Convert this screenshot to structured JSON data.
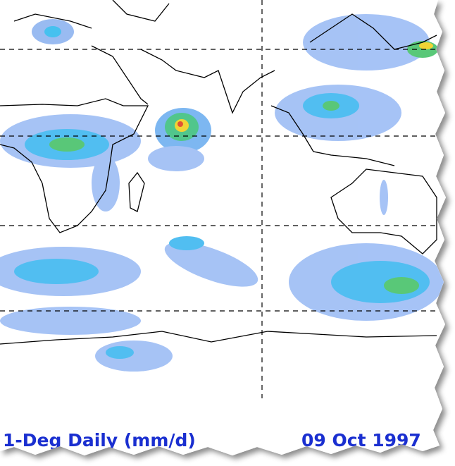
{
  "caption": {
    "product": "1-Deg Daily (mm/d)",
    "date": "09 Oct 1997"
  }
}
